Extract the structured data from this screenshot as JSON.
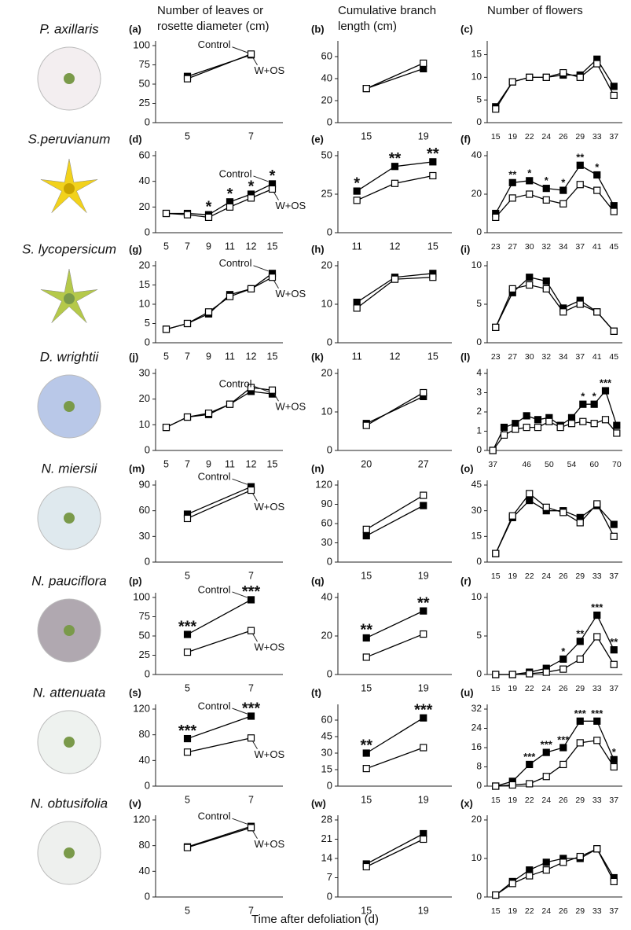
{
  "column_titles": [
    [
      "Number of leaves or",
      "rosette diameter (cm)"
    ],
    [
      "Cumulative branch",
      "length (cm)"
    ],
    [
      "Number of flowers"
    ]
  ],
  "species": [
    "P. axillaris",
    "S.peruvianum",
    "S. lycopersicum",
    "D. wrightii",
    "N. miersii",
    "N. pauciflora",
    "N. attenuata",
    "N. obtusifolia"
  ],
  "x_label": "Time after defoliation (d)",
  "chart_data": [
    {
      "type": "line",
      "panel": "(a)",
      "categories": [
        "5",
        "7"
      ],
      "series": [
        {
          "name": "Control",
          "color": "#000000",
          "values": [
            60,
            88
          ]
        },
        {
          "name": "W+OS",
          "color": "#ffffff",
          "values": [
            57,
            89
          ]
        }
      ],
      "ylim": [
        0,
        100
      ],
      "yticks": [
        0,
        25,
        50,
        75,
        100
      ]
    },
    {
      "type": "line",
      "panel": "(b)",
      "categories": [
        "15",
        "19"
      ],
      "series": [
        {
          "color": "#000000",
          "values": [
            31,
            49
          ]
        },
        {
          "color": "#ffffff",
          "values": [
            31,
            54
          ]
        }
      ],
      "ylim": [
        0,
        70
      ],
      "yticks": [
        0,
        20,
        40,
        60
      ]
    },
    {
      "type": "line",
      "panel": "(c)",
      "categories": [
        "15",
        "19",
        "22",
        "24",
        "26",
        "29",
        "33",
        "37"
      ],
      "series": [
        {
          "color": "#000000",
          "values": [
            3.5,
            9,
            10,
            10,
            10.5,
            10.5,
            14,
            8
          ]
        },
        {
          "color": "#ffffff",
          "values": [
            3,
            9,
            10,
            10,
            11,
            10,
            13,
            6
          ]
        }
      ],
      "ylim": [
        0,
        17
      ],
      "yticks": [
        0,
        5,
        10,
        15
      ]
    },
    {
      "type": "line",
      "panel": "(d)",
      "categories": [
        "5",
        "7",
        "9",
        "11",
        "12",
        "15"
      ],
      "series": [
        {
          "name": "Control",
          "color": "#000000",
          "values": [
            15,
            15,
            14,
            24,
            30,
            38
          ]
        },
        {
          "name": "W+OS",
          "color": "#ffffff",
          "values": [
            15,
            14,
            12,
            20,
            27,
            34
          ]
        }
      ],
      "significance": [
        null,
        null,
        "*",
        "*",
        "*",
        "*"
      ],
      "ylim": [
        0,
        60
      ],
      "yticks": [
        0,
        20,
        40,
        60
      ]
    },
    {
      "type": "line",
      "panel": "(e)",
      "categories": [
        "11",
        "12",
        "15"
      ],
      "series": [
        {
          "color": "#000000",
          "values": [
            27,
            43,
            46
          ]
        },
        {
          "color": "#ffffff",
          "values": [
            21,
            32,
            37
          ]
        }
      ],
      "significance": [
        "*",
        "**",
        "**"
      ],
      "ylim": [
        0,
        50
      ],
      "yticks": [
        0,
        25,
        50
      ]
    },
    {
      "type": "line",
      "panel": "(f)",
      "categories": [
        "23",
        "27",
        "30",
        "32",
        "34",
        "37",
        "41",
        "45"
      ],
      "series": [
        {
          "color": "#000000",
          "values": [
            10,
            26,
            27,
            23,
            22,
            35,
            30,
            14
          ]
        },
        {
          "color": "#ffffff",
          "values": [
            8,
            18,
            20,
            17,
            15,
            25,
            22,
            11
          ]
        }
      ],
      "significance": [
        null,
        "**",
        "*",
        "*",
        "*",
        "**",
        "*",
        null
      ],
      "ylim": [
        0,
        40
      ],
      "yticks": [
        0,
        20,
        40
      ]
    },
    {
      "type": "line",
      "panel": "(g)",
      "categories": [
        "5",
        "7",
        "9",
        "11",
        "12",
        "15"
      ],
      "series": [
        {
          "name": "Control",
          "color": "#000000",
          "values": [
            3.5,
            5,
            7.5,
            12.5,
            14,
            18
          ]
        },
        {
          "name": "W+OS",
          "color": "#ffffff",
          "values": [
            3.5,
            5,
            8,
            12,
            14,
            17
          ]
        }
      ],
      "ylim": [
        0,
        20
      ],
      "yticks": [
        0,
        5,
        10,
        15,
        20
      ]
    },
    {
      "type": "line",
      "panel": "(h)",
      "categories": [
        "11",
        "12",
        "15"
      ],
      "series": [
        {
          "color": "#000000",
          "values": [
            10.5,
            17,
            18
          ]
        },
        {
          "color": "#ffffff",
          "values": [
            9,
            16.5,
            17
          ]
        }
      ],
      "ylim": [
        0,
        20
      ],
      "yticks": [
        0,
        10,
        20
      ]
    },
    {
      "type": "line",
      "panel": "(i)",
      "categories": [
        "23",
        "27",
        "30",
        "32",
        "34",
        "37",
        "41",
        "45"
      ],
      "series": [
        {
          "color": "#000000",
          "values": [
            2,
            6.5,
            8.5,
            8,
            4.5,
            5.5,
            4,
            1.5
          ]
        },
        {
          "color": "#ffffff",
          "values": [
            2,
            7,
            7.5,
            7,
            4,
            5,
            4,
            1.5
          ]
        }
      ],
      "ylim": [
        0,
        10
      ],
      "yticks": [
        0,
        5,
        10
      ]
    },
    {
      "type": "line",
      "panel": "(j)",
      "categories": [
        "5",
        "7",
        "9",
        "11",
        "12",
        "15"
      ],
      "series": [
        {
          "name": "Control",
          "color": "#000000",
          "values": [
            9,
            13,
            14,
            18,
            23,
            22
          ]
        },
        {
          "name": "W+OS",
          "color": "#ffffff",
          "values": [
            9,
            13,
            14.5,
            18,
            24.5,
            23.5
          ]
        }
      ],
      "ylim": [
        0,
        30
      ],
      "yticks": [
        0,
        10,
        20,
        30
      ]
    },
    {
      "type": "line",
      "panel": "(k)",
      "categories": [
        "20",
        "27"
      ],
      "series": [
        {
          "color": "#000000",
          "values": [
            7,
            14
          ]
        },
        {
          "color": "#ffffff",
          "values": [
            6.5,
            15
          ]
        }
      ],
      "ylim": [
        0,
        20
      ],
      "yticks": [
        0,
        10,
        20
      ]
    },
    {
      "type": "line",
      "panel": "(l)",
      "categories": [
        "37",
        null,
        null,
        "46",
        null,
        "50",
        null,
        "54",
        null,
        "60",
        null,
        "70"
      ],
      "series": [
        {
          "color": "#000000",
          "values": [
            0,
            1.2,
            1.4,
            1.8,
            1.6,
            1.7,
            1.3,
            1.7,
            2.4,
            2.4,
            3.1,
            1.3
          ]
        },
        {
          "color": "#ffffff",
          "values": [
            0,
            0.8,
            1.1,
            1.2,
            1.2,
            1.5,
            1.2,
            1.4,
            1.5,
            1.4,
            1.6,
            0.9
          ]
        }
      ],
      "significance": [
        null,
        null,
        null,
        null,
        null,
        null,
        null,
        null,
        "*",
        "*",
        "***",
        null
      ],
      "ylim": [
        0,
        4
      ],
      "yticks": [
        0,
        1,
        2,
        3,
        4
      ]
    },
    {
      "type": "line",
      "panel": "(m)",
      "categories": [
        "5",
        "7"
      ],
      "series": [
        {
          "name": "Control",
          "color": "#000000",
          "values": [
            56,
            88
          ]
        },
        {
          "name": "W+OS",
          "color": "#ffffff",
          "values": [
            51,
            84
          ]
        }
      ],
      "ylim": [
        0,
        90
      ],
      "yticks": [
        0,
        30,
        60,
        90
      ]
    },
    {
      "type": "line",
      "panel": "(n)",
      "categories": [
        "15",
        "19"
      ],
      "series": [
        {
          "color": "#000000",
          "values": [
            41,
            88
          ]
        },
        {
          "color": "#ffffff",
          "values": [
            51,
            104
          ]
        }
      ],
      "ylim": [
        0,
        120
      ],
      "yticks": [
        0,
        30,
        60,
        90,
        120
      ]
    },
    {
      "type": "line",
      "panel": "(o)",
      "categories": [
        "15",
        "19",
        "22",
        "24",
        "26",
        "29",
        "33",
        "37"
      ],
      "series": [
        {
          "color": "#000000",
          "values": [
            5,
            26,
            36,
            30,
            30,
            26,
            33,
            22
          ]
        },
        {
          "color": "#ffffff",
          "values": [
            5,
            27,
            40,
            32,
            29,
            23,
            34,
            15
          ]
        }
      ],
      "ylim": [
        0,
        45
      ],
      "yticks": [
        0,
        15,
        30,
        45
      ]
    },
    {
      "type": "line",
      "panel": "(p)",
      "categories": [
        "5",
        "7"
      ],
      "series": [
        {
          "name": "Control",
          "color": "#000000",
          "values": [
            52,
            97
          ]
        },
        {
          "name": "W+OS",
          "color": "#ffffff",
          "values": [
            29,
            57
          ]
        }
      ],
      "significance": [
        "***",
        "***"
      ],
      "ylim": [
        0,
        100
      ],
      "yticks": [
        0,
        25,
        50,
        75,
        100
      ]
    },
    {
      "type": "line",
      "panel": "(q)",
      "categories": [
        "15",
        "19"
      ],
      "series": [
        {
          "color": "#000000",
          "values": [
            19,
            33
          ]
        },
        {
          "color": "#ffffff",
          "values": [
            9,
            21
          ]
        }
      ],
      "significance": [
        "**",
        "**"
      ],
      "ylim": [
        0,
        40
      ],
      "yticks": [
        0,
        20,
        40
      ]
    },
    {
      "type": "line",
      "panel": "(r)",
      "categories": [
        "15",
        "19",
        "22",
        "24",
        "26",
        "29",
        "33",
        "37"
      ],
      "series": [
        {
          "color": "#000000",
          "values": [
            0,
            0,
            0.3,
            0.8,
            2,
            4.3,
            7.7,
            3.2
          ]
        },
        {
          "color": "#ffffff",
          "values": [
            0,
            0,
            0.1,
            0.3,
            0.7,
            2,
            4.9,
            1.3
          ]
        }
      ],
      "significance": [
        null,
        null,
        null,
        null,
        "*",
        "**",
        "***",
        "**"
      ],
      "ylim": [
        0,
        10
      ],
      "yticks": [
        0,
        5,
        10
      ]
    },
    {
      "type": "line",
      "panel": "(s)",
      "categories": [
        "5",
        "7"
      ],
      "series": [
        {
          "name": "Control",
          "color": "#000000",
          "values": [
            74,
            109
          ]
        },
        {
          "name": "W+OS",
          "color": "#ffffff",
          "values": [
            53,
            75
          ]
        }
      ],
      "significance": [
        "***",
        "***"
      ],
      "ylim": [
        0,
        120
      ],
      "yticks": [
        0,
        40,
        80,
        120
      ]
    },
    {
      "type": "line",
      "panel": "(t)",
      "categories": [
        "15",
        "19"
      ],
      "series": [
        {
          "color": "#000000",
          "values": [
            30,
            62
          ]
        },
        {
          "color": "#ffffff",
          "values": [
            16,
            35
          ]
        }
      ],
      "significance": [
        "**",
        "***"
      ],
      "ylim": [
        0,
        70
      ],
      "yticks": [
        0,
        15,
        30,
        45,
        60
      ]
    },
    {
      "type": "line",
      "panel": "(u)",
      "categories": [
        "15",
        "19",
        "22",
        "24",
        "26",
        "29",
        "33",
        "37"
      ],
      "series": [
        {
          "color": "#000000",
          "values": [
            0,
            2,
            9,
            14,
            16,
            27,
            27,
            11
          ]
        },
        {
          "color": "#ffffff",
          "values": [
            0,
            0.5,
            1,
            4,
            9,
            18,
            19,
            8
          ]
        }
      ],
      "significance": [
        null,
        null,
        "***",
        "***",
        "***",
        "***",
        "***",
        "*"
      ],
      "ylim": [
        0,
        32
      ],
      "yticks": [
        0,
        8,
        16,
        24,
        32
      ]
    },
    {
      "type": "line",
      "panel": "(v)",
      "categories": [
        "5",
        "7"
      ],
      "series": [
        {
          "name": "Control",
          "color": "#000000",
          "values": [
            78,
            110
          ]
        },
        {
          "name": "W+OS",
          "color": "#ffffff",
          "values": [
            77,
            108
          ]
        }
      ],
      "ylim": [
        0,
        120
      ],
      "yticks": [
        0,
        40,
        80,
        120
      ]
    },
    {
      "type": "line",
      "panel": "(w)",
      "categories": [
        "15",
        "19"
      ],
      "series": [
        {
          "color": "#000000",
          "values": [
            12,
            23
          ]
        },
        {
          "color": "#ffffff",
          "values": [
            11,
            21
          ]
        }
      ],
      "ylim": [
        0,
        28
      ],
      "yticks": [
        0,
        7,
        14,
        21,
        28
      ]
    },
    {
      "type": "line",
      "panel": "(x)",
      "categories": [
        "15",
        "19",
        "22",
        "24",
        "26",
        "29",
        "33",
        "37"
      ],
      "series": [
        {
          "color": "#000000",
          "values": [
            0.5,
            4,
            7,
            9,
            10,
            10,
            12.5,
            5
          ]
        },
        {
          "color": "#ffffff",
          "values": [
            0.5,
            3.5,
            5.5,
            7,
            9,
            10.5,
            12.5,
            4
          ]
        }
      ],
      "ylim": [
        0,
        20
      ],
      "yticks": [
        0,
        10,
        20
      ]
    }
  ]
}
